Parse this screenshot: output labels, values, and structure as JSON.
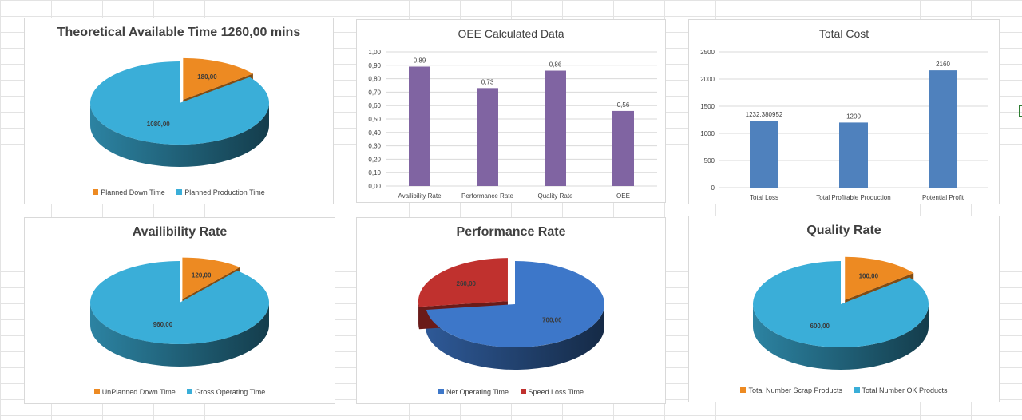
{
  "chart_data": [
    {
      "id": "theoretical",
      "type": "pie",
      "title": "Theoretical Available Time 1260,00 mins",
      "slices": [
        {
          "label": "Planned Down Time",
          "value": 180,
          "display": "180,00",
          "color": "#ED8A22",
          "exploded": true
        },
        {
          "label": "Planned Production Time",
          "value": 1080,
          "display": "1080,00",
          "color": "#3AAED8",
          "exploded": false
        }
      ],
      "legend_position": "bottom"
    },
    {
      "id": "oee",
      "type": "bar",
      "title": "OEE Calculated Data",
      "categories": [
        "Availibility Rate",
        "Performance Rate",
        "Quality Rate",
        "OEE"
      ],
      "values": [
        0.89,
        0.73,
        0.86,
        0.56
      ],
      "value_labels": [
        "0,89",
        "0,73",
        "0,86",
        "0,56"
      ],
      "ylim": [
        0,
        1
      ],
      "ytick_labels": [
        "0,00",
        "0,10",
        "0,20",
        "0,30",
        "0,40",
        "0,50",
        "0,60",
        "0,70",
        "0,80",
        "0,90",
        "1,00"
      ],
      "color": "#8064A2",
      "grid": true
    },
    {
      "id": "cost",
      "type": "bar",
      "title": "Total Cost",
      "categories": [
        "Total Loss",
        "Total Profitable Production",
        "Potential Profit"
      ],
      "values": [
        1232.380952,
        1200,
        2160
      ],
      "value_labels": [
        "1232,380952",
        "1200",
        "2160"
      ],
      "ylim": [
        0,
        2500
      ],
      "ytick_labels": [
        "0",
        "500",
        "1000",
        "1500",
        "2000",
        "2500"
      ],
      "color": "#4F81BD",
      "grid": true
    },
    {
      "id": "availability",
      "type": "pie",
      "title": "Availibility Rate",
      "slices": [
        {
          "label": "UnPlanned Down Time",
          "value": 120,
          "display": "120,00",
          "color": "#ED8A22",
          "exploded": true
        },
        {
          "label": "Gross Operating Time",
          "value": 960,
          "display": "960,00",
          "color": "#3AAED8",
          "exploded": false
        }
      ],
      "legend_position": "bottom"
    },
    {
      "id": "performance",
      "type": "pie",
      "title": "Performance Rate",
      "slices": [
        {
          "label": "Net Operating Time",
          "value": 700,
          "display": "700,00",
          "color": "#3D77C9",
          "exploded": false
        },
        {
          "label": "Speed Loss Time",
          "value": 260,
          "display": "260,00",
          "color": "#C0312E",
          "exploded": true
        }
      ],
      "legend_position": "bottom"
    },
    {
      "id": "quality",
      "type": "pie",
      "title": "Quality Rate",
      "slices": [
        {
          "label": "Total Number Scrap Products",
          "value": 100,
          "display": "100,00",
          "color": "#ED8A22",
          "exploded": true
        },
        {
          "label": "Total Number OK Products",
          "value": 600,
          "display": "600,00",
          "color": "#3AAED8",
          "exploded": false
        }
      ],
      "legend_position": "bottom"
    }
  ]
}
